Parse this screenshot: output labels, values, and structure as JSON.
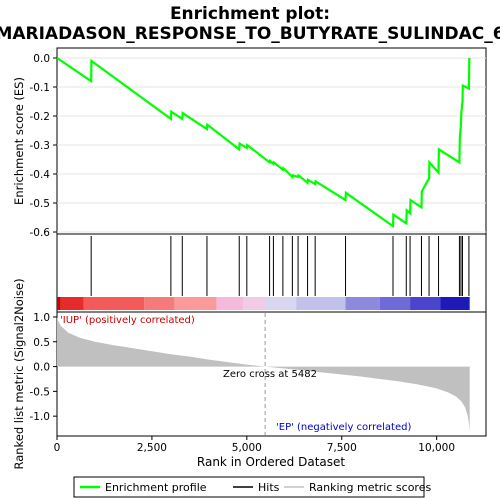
{
  "chart_data": {
    "type": "line",
    "title_line1": "Enrichment plot:",
    "title_line2": "MARIADASON_RESPONSE_TO_BUTYRATE_SULINDAC_6",
    "es_panel": {
      "ylabel": "Enrichment score (ES)",
      "ylim": [
        -0.6,
        0.0
      ],
      "yticks": [
        "0.0",
        "-0.1",
        "-0.2",
        "-0.3",
        "-0.4",
        "-0.5",
        "-0.6"
      ],
      "ytick_values": [
        0.0,
        -0.1,
        -0.2,
        -0.3,
        -0.4,
        -0.5,
        -0.6
      ],
      "color": "#00ff00",
      "series": [
        {
          "x": [
            0,
            900,
            905,
            3000,
            3010,
            3300,
            3310,
            3950,
            3960,
            4800,
            4810,
            5000,
            5010,
            5600,
            5610,
            5700,
            5710,
            5950,
            5960,
            6200,
            6210,
            6350,
            6360,
            6600,
            6610,
            6800,
            6810,
            7600,
            7610,
            8850,
            8860,
            9200,
            9210,
            9300,
            9310,
            9600,
            9610,
            9800,
            9810,
            10050,
            10060,
            10600,
            10610,
            10640,
            10650,
            10680,
            10690,
            10850,
            10860
          ],
          "y": [
            0.0,
            -0.08,
            -0.01,
            -0.21,
            -0.185,
            -0.21,
            -0.19,
            -0.245,
            -0.23,
            -0.315,
            -0.295,
            -0.31,
            -0.3,
            -0.36,
            -0.355,
            -0.365,
            -0.36,
            -0.385,
            -0.38,
            -0.41,
            -0.405,
            -0.41,
            -0.405,
            -0.43,
            -0.42,
            -0.435,
            -0.425,
            -0.49,
            -0.465,
            -0.58,
            -0.54,
            -0.57,
            -0.525,
            -0.535,
            -0.49,
            -0.515,
            -0.46,
            -0.415,
            -0.36,
            -0.395,
            -0.315,
            -0.36,
            -0.28,
            -0.23,
            -0.19,
            -0.15,
            -0.095,
            -0.105,
            0.0
          ]
        }
      ]
    },
    "hits": [
      900,
      3000,
      3300,
      3950,
      4800,
      5000,
      5600,
      5700,
      5950,
      6200,
      6350,
      6600,
      6800,
      7600,
      8850,
      9200,
      9300,
      9600,
      9800,
      10050,
      10600,
      10640,
      10680,
      10850
    ],
    "color_bar": {
      "segments": [
        {
          "from": 0,
          "to": 100,
          "color": "#cc0000"
        },
        {
          "from": 100,
          "to": 700,
          "color": "#e62b2b"
        },
        {
          "from": 700,
          "to": 2300,
          "color": "#f55a5a"
        },
        {
          "from": 2300,
          "to": 3100,
          "color": "#f77a7a"
        },
        {
          "from": 3100,
          "to": 4200,
          "color": "#fa9a9a"
        },
        {
          "from": 4200,
          "to": 4900,
          "color": "#f5b9db"
        },
        {
          "from": 4900,
          "to": 5480,
          "color": "#f2cce6"
        },
        {
          "from": 5480,
          "to": 6300,
          "color": "#d8d6f0"
        },
        {
          "from": 6300,
          "to": 7600,
          "color": "#c2c0ec"
        },
        {
          "from": 7600,
          "to": 8500,
          "color": "#8d8ade"
        },
        {
          "from": 8500,
          "to": 9300,
          "color": "#6e6ad8"
        },
        {
          "from": 9300,
          "to": 10100,
          "color": "#4a45cc"
        },
        {
          "from": 10100,
          "to": 10870,
          "color": "#1f19b8"
        }
      ]
    },
    "metric_panel": {
      "ylabel": "Ranked list metric (Signal2Noise)",
      "ylim": [
        -1.4,
        1.1
      ],
      "yticks": [
        "1.0",
        "0.5",
        "0.0",
        "-0.5",
        "-1.0"
      ],
      "ytick_values": [
        1.0,
        0.5,
        0.0,
        -0.5,
        -1.0
      ],
      "profile_x": [
        0,
        30,
        100,
        300,
        600,
        1000,
        1500,
        2000,
        2500,
        3000,
        3500,
        4000,
        4500,
        5000,
        5482,
        6000,
        6500,
        7000,
        7500,
        8000,
        8500,
        9000,
        9500,
        10000,
        10300,
        10500,
        10650,
        10750,
        10820,
        10860,
        10870
      ],
      "profile_y": [
        1.0,
        0.92,
        0.82,
        0.68,
        0.58,
        0.5,
        0.43,
        0.37,
        0.31,
        0.25,
        0.2,
        0.14,
        0.09,
        0.04,
        0.0,
        -0.04,
        -0.08,
        -0.12,
        -0.16,
        -0.2,
        -0.25,
        -0.3,
        -0.36,
        -0.44,
        -0.52,
        -0.6,
        -0.7,
        -0.82,
        -1.0,
        -1.2,
        -1.35
      ],
      "label_positive": "'IUP' (positively correlated)",
      "label_negative": "'EP' (negatively correlated)",
      "zero_cross_label": "Zero cross at 5482",
      "zero_cross": 5482
    },
    "xaxis": {
      "label": "Rank in Ordered Dataset",
      "xlim": [
        0,
        11300
      ],
      "ticks": [
        "0",
        "2,500",
        "5,000",
        "7,500",
        "10,000"
      ],
      "tick_values": [
        0,
        2500,
        5000,
        7500,
        10000
      ]
    },
    "legend": {
      "position": "bottom",
      "items": [
        {
          "label": "Enrichment profile",
          "color": "#00ff00"
        },
        {
          "label": "Hits",
          "color": "#000000"
        },
        {
          "label": "Ranking metric scores",
          "color": "#c0c0c0"
        }
      ]
    }
  }
}
